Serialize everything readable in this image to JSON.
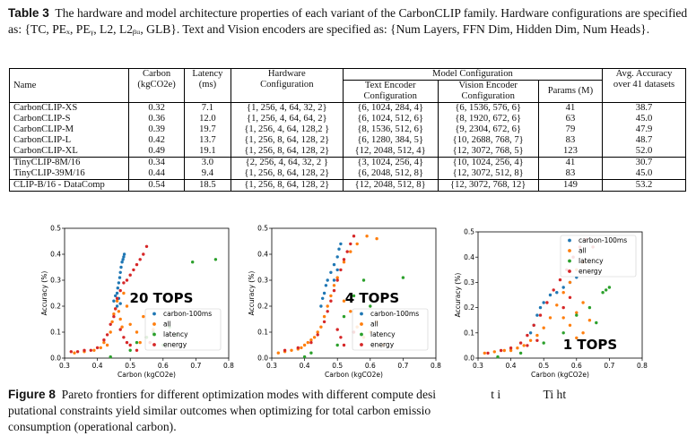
{
  "table_caption": {
    "label": "Table 3",
    "text": "The hardware and model architecture properties of each variant of the CarbonCLIP family. Hardware configurations are specified as: {TC, PE",
    "text_math": "The hardware and model architecture properties of each variant of the CarbonCLIP family.  Hardware configurations are specified as: {TC, PEₓ, PEᵧ, L2, L2ᵦᵤ, GLB}. Text and Vision encoders are specified as: {Num Layers, FFN Dim, Hidden Dim, Num Heads}."
  },
  "table": {
    "headers": {
      "name": "Name",
      "carbon": "Carbon",
      "carbon_unit": "(kgCO2e)",
      "latency": "Latency",
      "latency_unit": "(ms)",
      "hw": "Hardware",
      "hw2": "Configuration",
      "model_config": "Model Configuration",
      "text_enc": "Text Encoder",
      "text_enc2": "Configuration",
      "vision_enc": "Vision Encoder",
      "vision_enc2": "Configuration",
      "params": "Params (M)",
      "acc": "Avg. Accuracy",
      "acc2": "over 41 datasets"
    },
    "group1": [
      [
        "CarbonCLIP-XS",
        "0.32",
        "7.1",
        "{1, 256, 4, 64, 32, 2}",
        "{6, 1024, 284, 4}",
        "{6, 1536, 576, 6}",
        "41",
        "38.7"
      ],
      [
        "CarbonCLIP-S",
        "0.36",
        "12.0",
        "{1, 256, 4, 64, 64, 2}",
        "{6, 1024, 512, 6}",
        "{8, 1920, 672, 6}",
        "63",
        "45.0"
      ],
      [
        "CarbonCLIP-M",
        "0.39",
        "19.7",
        "{1, 256, 4, 64, 128,2 }",
        "{8, 1536, 512, 6}",
        "{9, 2304, 672, 6}",
        "79",
        "47.9"
      ],
      [
        "CarbonCLIP-L",
        "0.42",
        "13.7",
        "{1, 256, 8, 64, 128, 2}",
        "{6, 1280, 384, 5}",
        "{10, 2688, 768, 7}",
        "83",
        "48.7"
      ],
      [
        "CarbonCLIP-XL",
        "0.49",
        "19.1",
        "{1, 256, 8, 64, 128, 2}",
        "{12, 2048, 512, 4}",
        "{12, 3072, 768, 5}",
        "123",
        "52.0"
      ]
    ],
    "group2": [
      [
        "TinyCLIP-8M/16",
        "0.34",
        "3.0",
        "{2, 256, 4, 64, 32, 2 }",
        "{3, 1024, 256, 4}",
        "{10, 1024, 256, 4}",
        "41",
        "30.7"
      ],
      [
        "TinyCLIP-39M/16",
        "0.44",
        "9.4",
        "{1, 256, 8, 64, 128, 2}",
        "{6, 2048, 512, 8}",
        "{12, 3072, 512, 8}",
        "83",
        "45.0"
      ]
    ],
    "group3": [
      [
        "CLIP-B/16 - DataComp",
        "0.54",
        "18.5",
        "{1, 256, 8, 64, 128, 2}",
        "{12, 2048, 512, 8}",
        "{12, 3072, 768, 12}",
        "149",
        "53.2"
      ]
    ]
  },
  "figure_caption": {
    "label": "Figure 8",
    "line1": "Pareto frontiers for different optimization modes with different compute desi",
    "line1_tail": "                  t i              Ti ht",
    "line2": "putational constraints yield similar outcomes when optimizing for total carbon emissio",
    "line3": "consumption (operational carbon)."
  },
  "colors": {
    "carbon": "#1f77b4",
    "all": "#ff7f0e",
    "latency": "#2ca02c",
    "energy": "#d62728"
  },
  "chart_data": [
    {
      "type": "scatter",
      "annotation": "20 TOPS",
      "xlabel": "Carbon (kgCO2e)",
      "ylabel": "Accuracy (%)",
      "xlim": [
        0.3,
        0.8
      ],
      "ylim": [
        0.0,
        0.5
      ],
      "xticks": [
        "0.3",
        "0.4",
        "0.5",
        "0.6",
        "0.7",
        "0.8"
      ],
      "yticks": [
        "0.0",
        "0.1",
        "0.2",
        "0.3",
        "0.4",
        "0.5"
      ],
      "legend_position": "center-right",
      "series": [
        {
          "name": "carbon-100ms",
          "color": "#1f77b4",
          "points": [
            [
              0.455,
              0.24
            ],
            [
              0.46,
              0.25
            ],
            [
              0.462,
              0.27
            ],
            [
              0.465,
              0.29
            ],
            [
              0.468,
              0.31
            ],
            [
              0.47,
              0.33
            ],
            [
              0.472,
              0.35
            ],
            [
              0.475,
              0.37
            ],
            [
              0.478,
              0.38
            ],
            [
              0.48,
              0.39
            ],
            [
              0.482,
              0.4
            ],
            [
              0.45,
              0.22
            ],
            [
              0.46,
              0.2
            ],
            [
              0.465,
              0.23
            ],
            [
              0.47,
              0.21
            ]
          ]
        },
        {
          "name": "all",
          "color": "#ff7f0e",
          "points": [
            [
              0.33,
              0.02
            ],
            [
              0.36,
              0.025
            ],
            [
              0.39,
              0.03
            ],
            [
              0.41,
              0.04
            ],
            [
              0.42,
              0.06
            ],
            [
              0.43,
              0.05
            ],
            [
              0.44,
              0.1
            ],
            [
              0.445,
              0.14
            ],
            [
              0.45,
              0.17
            ],
            [
              0.455,
              0.19
            ],
            [
              0.46,
              0.22
            ],
            [
              0.465,
              0.18
            ],
            [
              0.47,
              0.15
            ],
            [
              0.475,
              0.12
            ],
            [
              0.48,
              0.25
            ],
            [
              0.49,
              0.2
            ],
            [
              0.5,
              0.13
            ],
            [
              0.52,
              0.1
            ],
            [
              0.53,
              0.06
            ],
            [
              0.54,
              0.16
            ],
            [
              0.55,
              0.08
            ],
            [
              0.57,
              0.11
            ]
          ]
        },
        {
          "name": "latency",
          "color": "#2ca02c",
          "points": [
            [
              0.44,
              0.005
            ],
            [
              0.5,
              0.03
            ],
            [
              0.52,
              0.06
            ],
            [
              0.55,
              0.08
            ],
            [
              0.57,
              0.1
            ],
            [
              0.6,
              0.05
            ],
            [
              0.62,
              0.12
            ],
            [
              0.69,
              0.37
            ],
            [
              0.76,
              0.38
            ],
            [
              0.64,
              0.09
            ]
          ]
        },
        {
          "name": "energy",
          "color": "#d62728",
          "points": [
            [
              0.32,
              0.025
            ],
            [
              0.34,
              0.025
            ],
            [
              0.36,
              0.03
            ],
            [
              0.38,
              0.03
            ],
            [
              0.4,
              0.04
            ],
            [
              0.42,
              0.07
            ],
            [
              0.43,
              0.09
            ],
            [
              0.44,
              0.13
            ],
            [
              0.45,
              0.16
            ],
            [
              0.455,
              0.19
            ],
            [
              0.46,
              0.23
            ],
            [
              0.47,
              0.26
            ],
            [
              0.48,
              0.29
            ],
            [
              0.49,
              0.3
            ],
            [
              0.5,
              0.32
            ],
            [
              0.51,
              0.34
            ],
            [
              0.52,
              0.36
            ],
            [
              0.53,
              0.38
            ],
            [
              0.54,
              0.4
            ],
            [
              0.55,
              0.43
            ],
            [
              0.47,
              0.11
            ],
            [
              0.48,
              0.08
            ],
            [
              0.49,
              0.06
            ],
            [
              0.5,
              0.05
            ],
            [
              0.52,
              0.03
            ],
            [
              0.56,
              0.06
            ]
          ]
        }
      ]
    },
    {
      "type": "scatter",
      "annotation": "4 TOPS",
      "xlabel": "Carbon (kgCO2e)",
      "ylabel": "Accuracy (%)",
      "xlim": [
        0.3,
        0.8
      ],
      "ylim": [
        0.0,
        0.5
      ],
      "xticks": [
        "0.3",
        "0.4",
        "0.5",
        "0.6",
        "0.7",
        "0.8"
      ],
      "yticks": [
        "0.0",
        "0.1",
        "0.2",
        "0.3",
        "0.4",
        "0.5"
      ],
      "legend_position": "lower-right",
      "series": [
        {
          "name": "carbon-100ms",
          "color": "#1f77b4",
          "points": [
            [
              0.45,
              0.2
            ],
            [
              0.455,
              0.23
            ],
            [
              0.46,
              0.25
            ],
            [
              0.465,
              0.28
            ],
            [
              0.47,
              0.3
            ],
            [
              0.48,
              0.33
            ],
            [
              0.49,
              0.36
            ],
            [
              0.5,
              0.39
            ],
            [
              0.505,
              0.42
            ],
            [
              0.51,
              0.44
            ],
            [
              0.5,
              0.34
            ],
            [
              0.49,
              0.3
            ]
          ]
        },
        {
          "name": "all",
          "color": "#ff7f0e",
          "points": [
            [
              0.32,
              0.02
            ],
            [
              0.34,
              0.025
            ],
            [
              0.36,
              0.03
            ],
            [
              0.38,
              0.035
            ],
            [
              0.39,
              0.04
            ],
            [
              0.4,
              0.05
            ],
            [
              0.41,
              0.06
            ],
            [
              0.42,
              0.07
            ],
            [
              0.43,
              0.08
            ],
            [
              0.44,
              0.1
            ],
            [
              0.45,
              0.12
            ],
            [
              0.46,
              0.16
            ],
            [
              0.47,
              0.2
            ],
            [
              0.48,
              0.24
            ],
            [
              0.49,
              0.28
            ],
            [
              0.5,
              0.31
            ],
            [
              0.52,
              0.37
            ],
            [
              0.54,
              0.41
            ],
            [
              0.56,
              0.44
            ],
            [
              0.59,
              0.47
            ],
            [
              0.62,
              0.46
            ],
            [
              0.52,
              0.22
            ],
            [
              0.54,
              0.18
            ],
            [
              0.56,
              0.12
            ],
            [
              0.58,
              0.08
            ],
            [
              0.6,
              0.1
            ],
            [
              0.62,
              0.14
            ],
            [
              0.64,
              0.05
            ]
          ]
        },
        {
          "name": "latency",
          "color": "#2ca02c",
          "points": [
            [
              0.4,
              0.005
            ],
            [
              0.42,
              0.02
            ],
            [
              0.5,
              0.05
            ],
            [
              0.52,
              0.16
            ],
            [
              0.55,
              0.24
            ],
            [
              0.58,
              0.3
            ],
            [
              0.6,
              0.2
            ],
            [
              0.7,
              0.31
            ]
          ]
        },
        {
          "name": "energy",
          "color": "#d62728",
          "points": [
            [
              0.34,
              0.03
            ],
            [
              0.38,
              0.04
            ],
            [
              0.42,
              0.06
            ],
            [
              0.44,
              0.09
            ],
            [
              0.46,
              0.14
            ],
            [
              0.47,
              0.18
            ],
            [
              0.48,
              0.22
            ],
            [
              0.49,
              0.26
            ],
            [
              0.5,
              0.3
            ],
            [
              0.51,
              0.34
            ],
            [
              0.52,
              0.38
            ],
            [
              0.53,
              0.41
            ],
            [
              0.54,
              0.44
            ],
            [
              0.55,
              0.47
            ],
            [
              0.5,
              0.11
            ],
            [
              0.51,
              0.08
            ],
            [
              0.52,
              0.05
            ],
            [
              0.55,
              0.1
            ]
          ]
        }
      ]
    },
    {
      "type": "scatter",
      "annotation": "1 TOPS",
      "xlabel": "Carbon (kgCO2e)",
      "ylabel": "Accuracy (%)",
      "xlim": [
        0.3,
        0.8
      ],
      "ylim": [
        0.0,
        0.5
      ],
      "xticks": [
        "0.3",
        "0.4",
        "0.5",
        "0.6",
        "0.7",
        "0.8"
      ],
      "yticks": [
        "0.0",
        "0.1",
        "0.2",
        "0.3",
        "0.4",
        "0.5"
      ],
      "legend_position": "top-right",
      "series": [
        {
          "name": "carbon-100ms",
          "color": "#1f77b4",
          "points": [
            [
              0.46,
              0.1
            ],
            [
              0.47,
              0.13
            ],
            [
              0.48,
              0.17
            ],
            [
              0.49,
              0.2
            ],
            [
              0.5,
              0.22
            ],
            [
              0.52,
              0.25
            ],
            [
              0.54,
              0.26
            ],
            [
              0.56,
              0.28
            ],
            [
              0.58,
              0.3
            ],
            [
              0.6,
              0.32
            ]
          ]
        },
        {
          "name": "all",
          "color": "#ff7f0e",
          "points": [
            [
              0.32,
              0.02
            ],
            [
              0.35,
              0.025
            ],
            [
              0.38,
              0.03
            ],
            [
              0.4,
              0.03
            ],
            [
              0.42,
              0.04
            ],
            [
              0.44,
              0.05
            ],
            [
              0.46,
              0.07
            ],
            [
              0.48,
              0.09
            ],
            [
              0.5,
              0.12
            ],
            [
              0.52,
              0.16
            ],
            [
              0.54,
              0.21
            ],
            [
              0.56,
              0.26
            ],
            [
              0.58,
              0.3
            ],
            [
              0.6,
              0.35
            ],
            [
              0.62,
              0.38
            ],
            [
              0.56,
              0.16
            ],
            [
              0.58,
              0.13
            ],
            [
              0.6,
              0.18
            ],
            [
              0.62,
              0.22
            ],
            [
              0.64,
              0.15
            ],
            [
              0.6,
              0.08
            ],
            [
              0.62,
              0.1
            ]
          ]
        },
        {
          "name": "latency",
          "color": "#2ca02c",
          "points": [
            [
              0.36,
              0.005
            ],
            [
              0.43,
              0.02
            ],
            [
              0.5,
              0.06
            ],
            [
              0.56,
              0.1
            ],
            [
              0.6,
              0.17
            ],
            [
              0.64,
              0.2
            ],
            [
              0.66,
              0.14
            ],
            [
              0.68,
              0.26
            ],
            [
              0.69,
              0.27
            ],
            [
              0.7,
              0.28
            ]
          ]
        },
        {
          "name": "energy",
          "color": "#d62728",
          "points": [
            [
              0.33,
              0.02
            ],
            [
              0.37,
              0.03
            ],
            [
              0.4,
              0.04
            ],
            [
              0.43,
              0.06
            ],
            [
              0.45,
              0.09
            ],
            [
              0.47,
              0.13
            ],
            [
              0.49,
              0.17
            ],
            [
              0.51,
              0.22
            ],
            [
              0.53,
              0.27
            ],
            [
              0.55,
              0.31
            ],
            [
              0.57,
              0.35
            ],
            [
              0.59,
              0.4
            ],
            [
              0.61,
              0.44
            ],
            [
              0.63,
              0.47
            ],
            [
              0.65,
              0.44
            ],
            [
              0.56,
              0.2
            ],
            [
              0.58,
              0.24
            ],
            [
              0.45,
              0.05
            ],
            [
              0.48,
              0.07
            ]
          ]
        }
      ]
    }
  ]
}
